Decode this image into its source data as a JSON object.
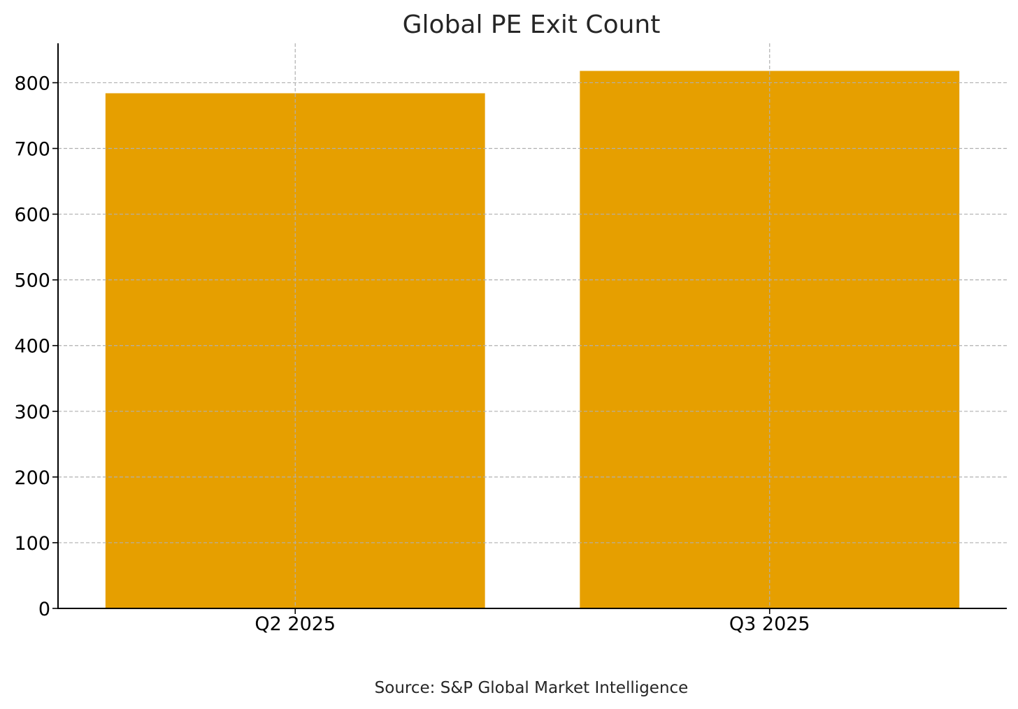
{
  "chart_data": {
    "type": "bar",
    "title": "Global PE Exit Count",
    "categories": [
      "Q2 2025",
      "Q3 2025"
    ],
    "values": [
      784,
      818
    ],
    "xlabel": "",
    "ylabel": "",
    "ylim": [
      0,
      860
    ],
    "yticks": [
      "0",
      "100",
      "200",
      "300",
      "400",
      "500",
      "600",
      "700",
      "800"
    ],
    "grid": true,
    "bar_color": "#E69F00",
    "note": "Source: S&P Global Market Intelligence"
  }
}
